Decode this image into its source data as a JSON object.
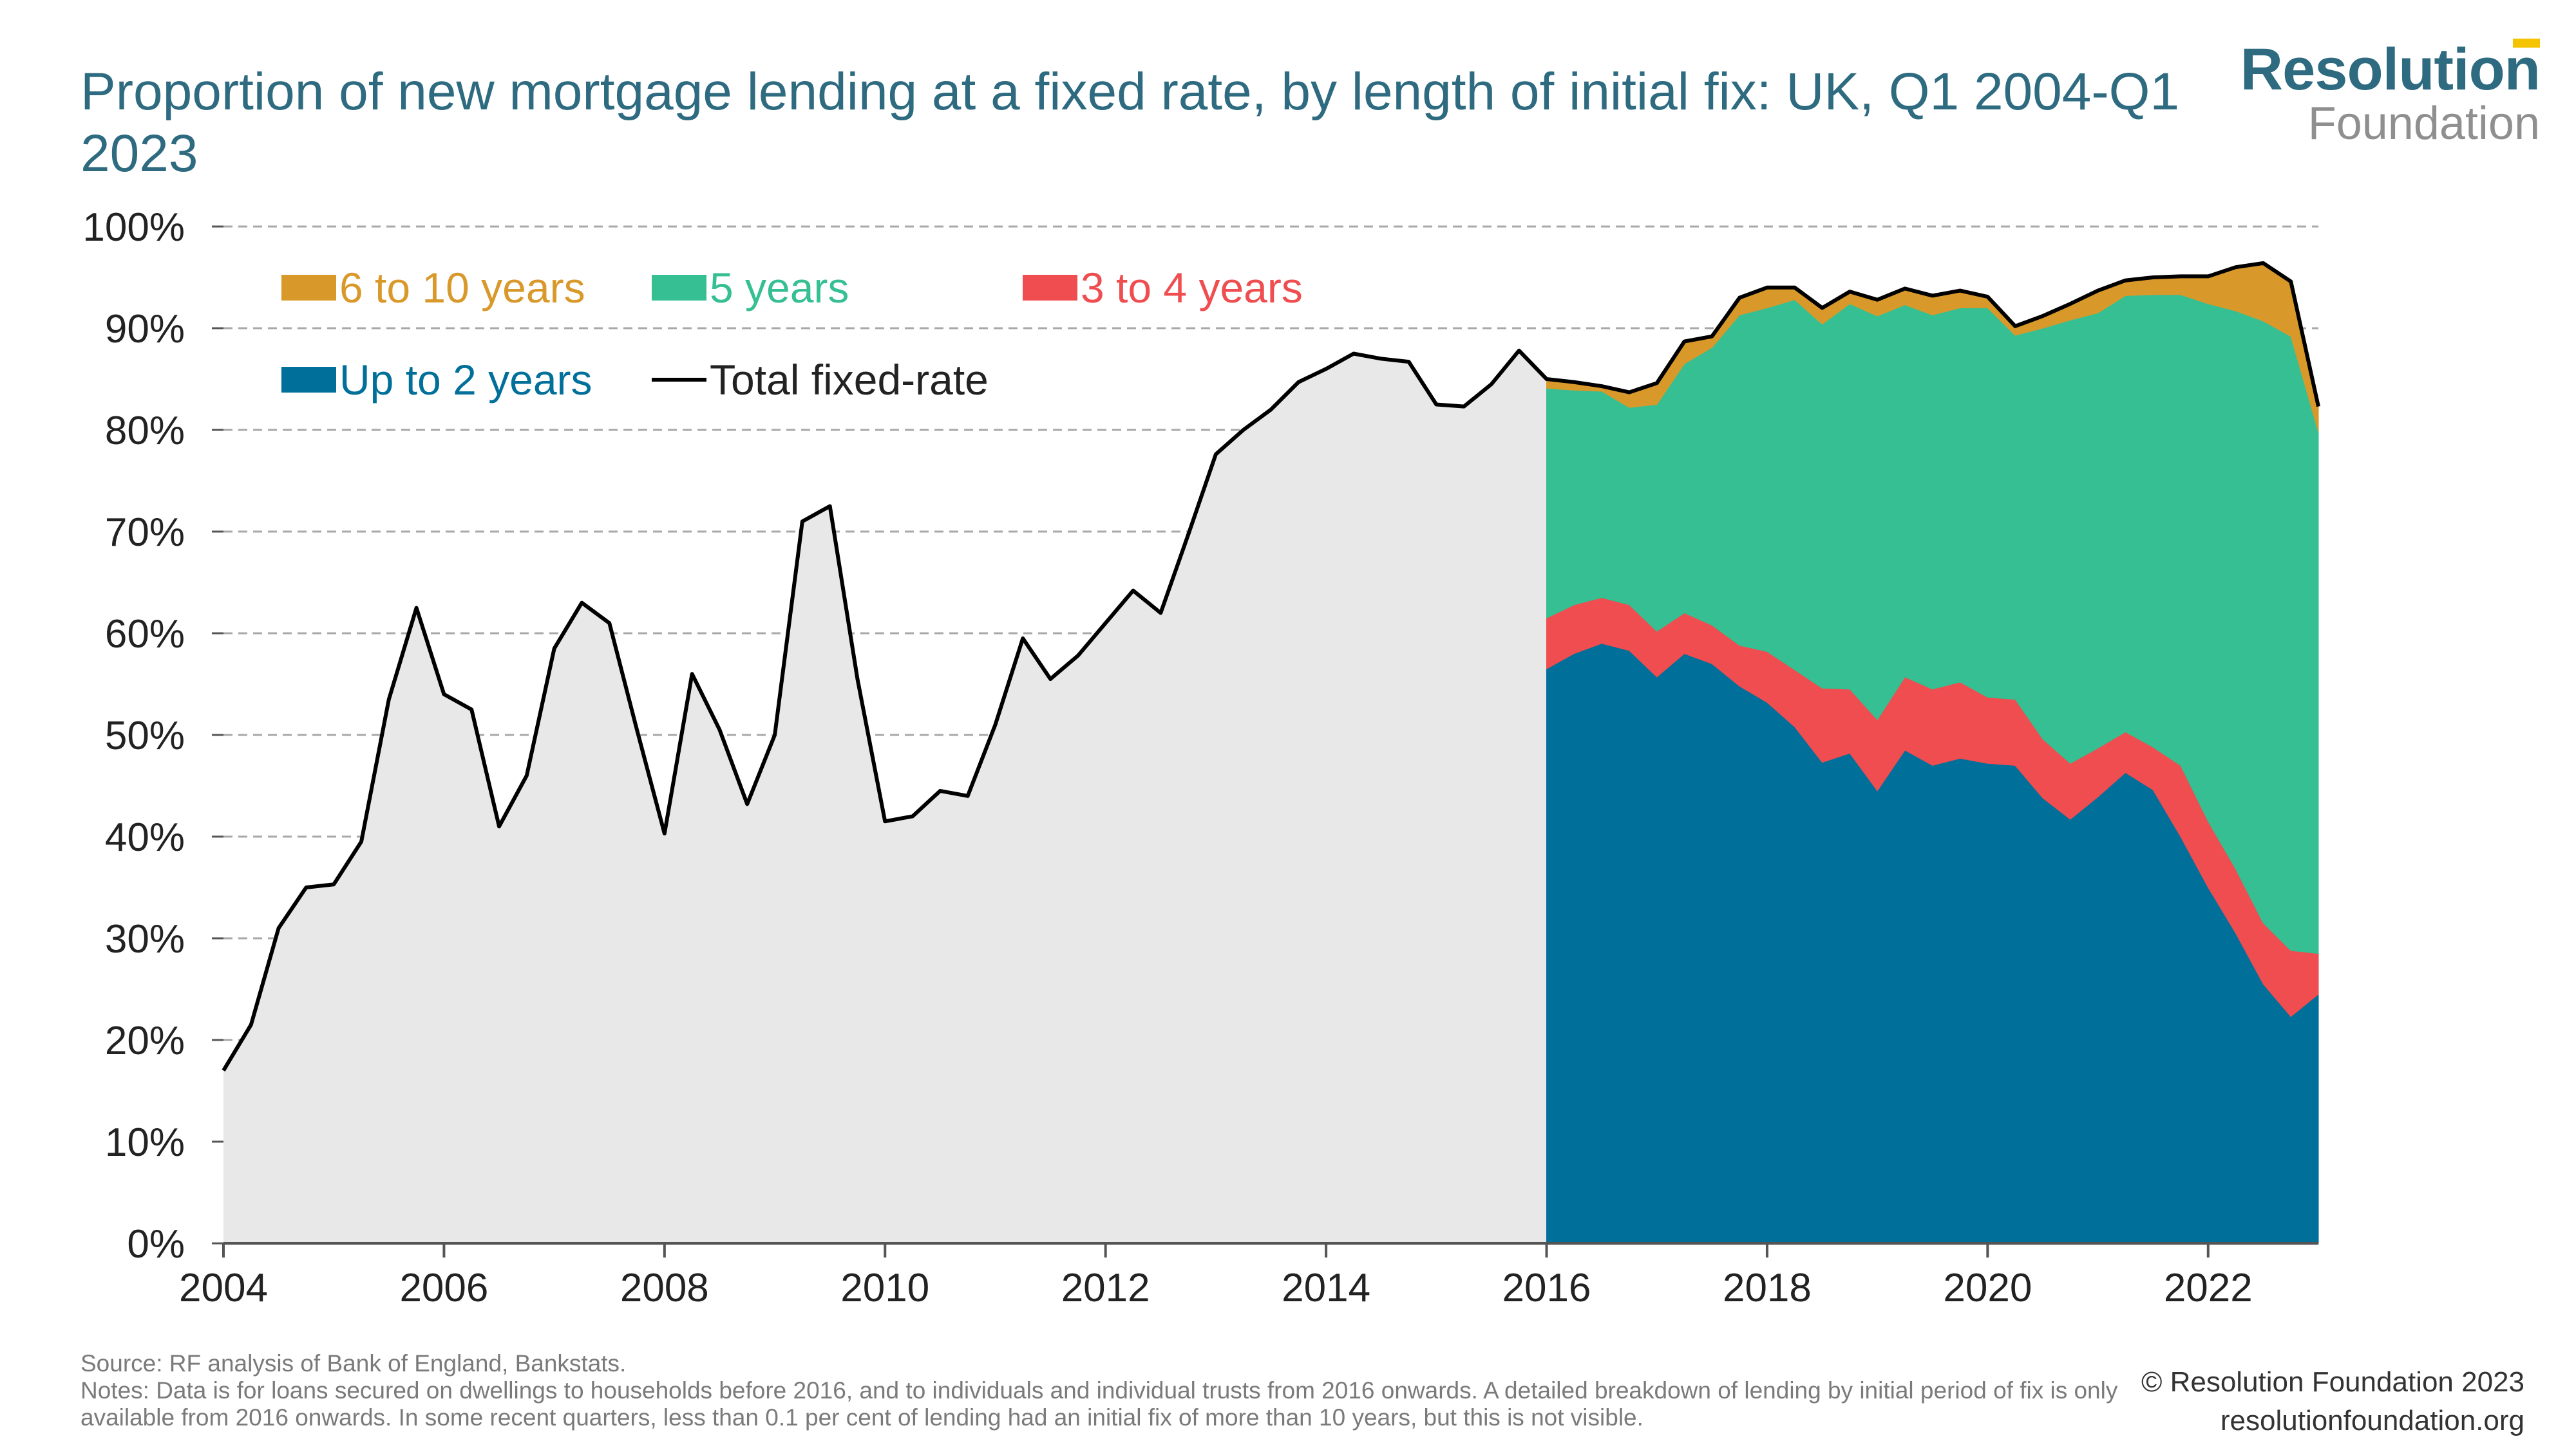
{
  "title": "Proportion of new mortgage lending at a fixed rate, by length of initial fix: UK, Q1 2004-Q1 2023",
  "logo": {
    "line1": "Resolution",
    "line2": "Foundation"
  },
  "footer": {
    "source": "Source: RF analysis of Bank of England, Bankstats.",
    "notes": "Notes: Data is for loans secured on dwellings to households before 2016, and to individuals and individual trusts from 2016 onwards. A detailed breakdown of lending by initial period of fix is only available from 2016 onwards. In some recent quarters, less than 0.1 per cent of lending had an initial fix of more than 10 years, but this is not visible.",
    "copyright": "© Resolution Foundation 2023",
    "website": "resolutionfoundation.org"
  },
  "colors": {
    "title": "#2e6b80",
    "up_to_2": "#006f9a",
    "three_to_4": "#ef4d4f",
    "five": "#35bf93",
    "six_to_10": "#d9992a",
    "total_line": "#000000",
    "total_area": "#e8e8e8",
    "grid": "#a8a8a8",
    "axis_text": "#222222"
  },
  "chart_data": {
    "type": "area",
    "title": "Proportion of new mortgage lending at a fixed rate, by length of initial fix: UK, Q1 2004-Q1 2023",
    "ylim": [
      0,
      100
    ],
    "xlim": [
      2004,
      2023
    ],
    "y_ticks": [
      "0%",
      "10%",
      "20%",
      "30%",
      "40%",
      "50%",
      "60%",
      "70%",
      "80%",
      "90%",
      "100%"
    ],
    "x_ticks": [
      "2004",
      "2006",
      "2008",
      "2010",
      "2012",
      "2014",
      "2016",
      "2018",
      "2020",
      "2022"
    ],
    "grid": "horizontal dashed",
    "legend_position": "top-left",
    "legend": [
      {
        "label": "6 to 10 years",
        "key": "six_to_10",
        "kind": "area"
      },
      {
        "label": "5 years",
        "key": "five",
        "kind": "area"
      },
      {
        "label": "3 to 4 years",
        "key": "three_to_4",
        "kind": "area"
      },
      {
        "label": "Up to 2 years",
        "key": "up_to_2",
        "kind": "area"
      },
      {
        "label": "Total fixed-rate",
        "key": "total_line",
        "kind": "line"
      }
    ],
    "total_fixed_rate": {
      "x": [
        2004.0,
        2004.25,
        2004.5,
        2004.75,
        2005.0,
        2005.25,
        2005.5,
        2005.75,
        2006.0,
        2006.25,
        2006.5,
        2006.75,
        2007.0,
        2007.25,
        2007.5,
        2007.75,
        2008.0,
        2008.25,
        2008.5,
        2008.75,
        2009.0,
        2009.25,
        2009.5,
        2009.75,
        2010.0,
        2010.25,
        2010.5,
        2010.75,
        2011.0,
        2011.25,
        2011.5,
        2011.75,
        2012.0,
        2012.25,
        2012.5,
        2012.75,
        2013.0,
        2013.25,
        2013.5,
        2013.75,
        2014.0,
        2014.25,
        2014.5,
        2014.75,
        2015.0,
        2015.25,
        2015.5,
        2015.75,
        2016.0,
        2016.25,
        2016.5,
        2016.75,
        2017.0,
        2017.25,
        2017.5,
        2017.75,
        2018.0,
        2018.25,
        2018.5,
        2018.75,
        2019.0,
        2019.25,
        2019.5,
        2019.75,
        2020.0,
        2020.25,
        2020.5,
        2020.75,
        2021.0,
        2021.25,
        2021.5,
        2021.75,
        2022.0,
        2022.25,
        2022.5,
        2022.75,
        2023.0
      ],
      "y": [
        17,
        21.5,
        31,
        35,
        35.3,
        39.5,
        53.5,
        62.5,
        54,
        52.5,
        41,
        46,
        58.5,
        63,
        61,
        50.5,
        40.3,
        56,
        50.5,
        43.2,
        50,
        71,
        72.5,
        55.5,
        41.5,
        42,
        44.5,
        44,
        51,
        59.5,
        55.5,
        57.8,
        61,
        64.2,
        62,
        69.7,
        77.6,
        80,
        82,
        84.7,
        86,
        87.5,
        87,
        86.7,
        82.5,
        82.3,
        84.5,
        87.8,
        85,
        84.7,
        84.3,
        83.7,
        84.6,
        88.7,
        89.2,
        93,
        94,
        94,
        92,
        93.6,
        92.8,
        93.9,
        93.2,
        93.7,
        93.1,
        90.2,
        91.2,
        92.4,
        93.7,
        94.7,
        95,
        95.1,
        95.1,
        96,
        96.4,
        94.6,
        82.3
      ]
    },
    "series_x": [
      2016.0,
      2016.25,
      2016.5,
      2016.75,
      2017.0,
      2017.25,
      2017.5,
      2017.75,
      2018.0,
      2018.25,
      2018.5,
      2018.75,
      2019.0,
      2019.25,
      2019.5,
      2019.75,
      2020.0,
      2020.25,
      2020.5,
      2020.75,
      2021.0,
      2021.25,
      2021.5,
      2021.75,
      2022.0,
      2022.25,
      2022.5,
      2022.75,
      2023.0
    ],
    "series": [
      {
        "name": "Up to 2 years",
        "key": "up_to_2",
        "values": [
          56.5,
          58,
          59,
          58.3,
          55.7,
          58,
          57,
          54.8,
          53.2,
          50.8,
          47.3,
          48.2,
          44.5,
          48.5,
          47,
          47.7,
          47.2,
          47,
          43.8,
          41.7,
          43.9,
          46.3,
          44.6,
          40,
          35,
          30.5,
          25.5,
          22.3,
          24.5
        ]
      },
      {
        "name": "3 to 4 years",
        "key": "three_to_4",
        "values": [
          5,
          4.8,
          4.5,
          4.5,
          4.5,
          4,
          3.8,
          4,
          5,
          5.6,
          7.3,
          6.3,
          7,
          7.2,
          7.5,
          7.5,
          6.5,
          6.5,
          5.8,
          5.5,
          4.8,
          4,
          4.2,
          7,
          6.5,
          6.3,
          6,
          6.5,
          4
        ]
      },
      {
        "name": "5 years",
        "key": "five",
        "values": [
          22.6,
          21.1,
          20.3,
          19.4,
          22.3,
          24.5,
          27.3,
          32.5,
          33.8,
          36.4,
          35.8,
          37.9,
          39.7,
          36.6,
          36.8,
          36.8,
          38.3,
          35.8,
          40.4,
          43.6,
          42.8,
          42.9,
          44.5,
          46.3,
          50.9,
          54.9,
          59.2,
          60.4,
          51.3
        ]
      },
      {
        "name": "6 to 10 years",
        "key": "six_to_10",
        "values": [
          0.9,
          0.8,
          0.5,
          1.5,
          2.1,
          2.2,
          1.1,
          1.7,
          2,
          1.2,
          1.6,
          1.2,
          1.6,
          1.6,
          1.9,
          1.7,
          1.1,
          0.9,
          1.2,
          1.6,
          2.2,
          1.5,
          1.7,
          1.8,
          2.7,
          4.3,
          5.7,
          5.4,
          2.5
        ]
      }
    ]
  }
}
